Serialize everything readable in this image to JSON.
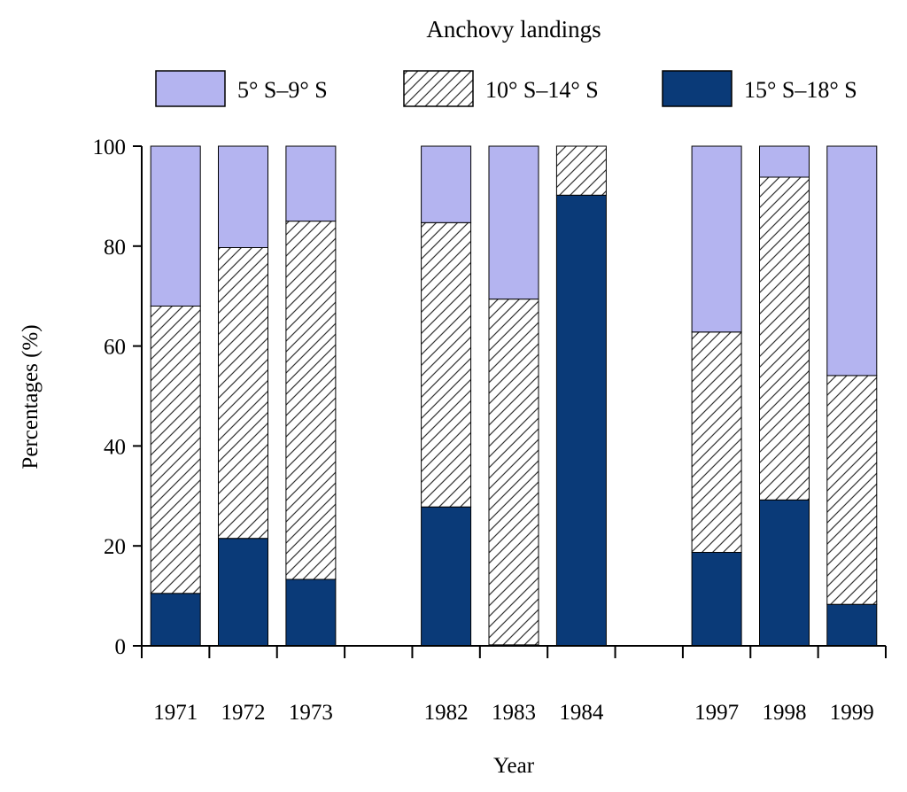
{
  "chart_data": {
    "type": "bar",
    "stacked": true,
    "title": "Anchovy landings",
    "xlabel": "Year",
    "ylabel": "Percentages (%)",
    "ylim": [
      0,
      100
    ],
    "yticks": [
      0,
      20,
      40,
      60,
      80,
      100
    ],
    "legend_position": "top",
    "grid": false,
    "categories": [
      "1971",
      "1972",
      "1973",
      "",
      "1982",
      "1983",
      "1984",
      "",
      "1997",
      "1998",
      "1999"
    ],
    "series": [
      {
        "name": "15° S–18° S",
        "color": "#0a3a78",
        "pattern": "solid",
        "values": [
          10.5,
          21.5,
          13.3,
          null,
          27.8,
          0.2,
          90.2,
          null,
          18.7,
          29.2,
          8.3
        ]
      },
      {
        "name": "10° S–14° S",
        "color": "#ffffff",
        "pattern": "hatch",
        "values": [
          57.5,
          58.2,
          71.7,
          null,
          56.9,
          69.2,
          9.8,
          null,
          44.1,
          64.6,
          45.8
        ]
      },
      {
        "name": "5° S–9° S",
        "color": "#b4b4f0",
        "pattern": "solid",
        "values": [
          32.0,
          20.3,
          15.0,
          null,
          15.3,
          30.6,
          0.0,
          null,
          37.2,
          6.2,
          45.9
        ]
      }
    ]
  }
}
